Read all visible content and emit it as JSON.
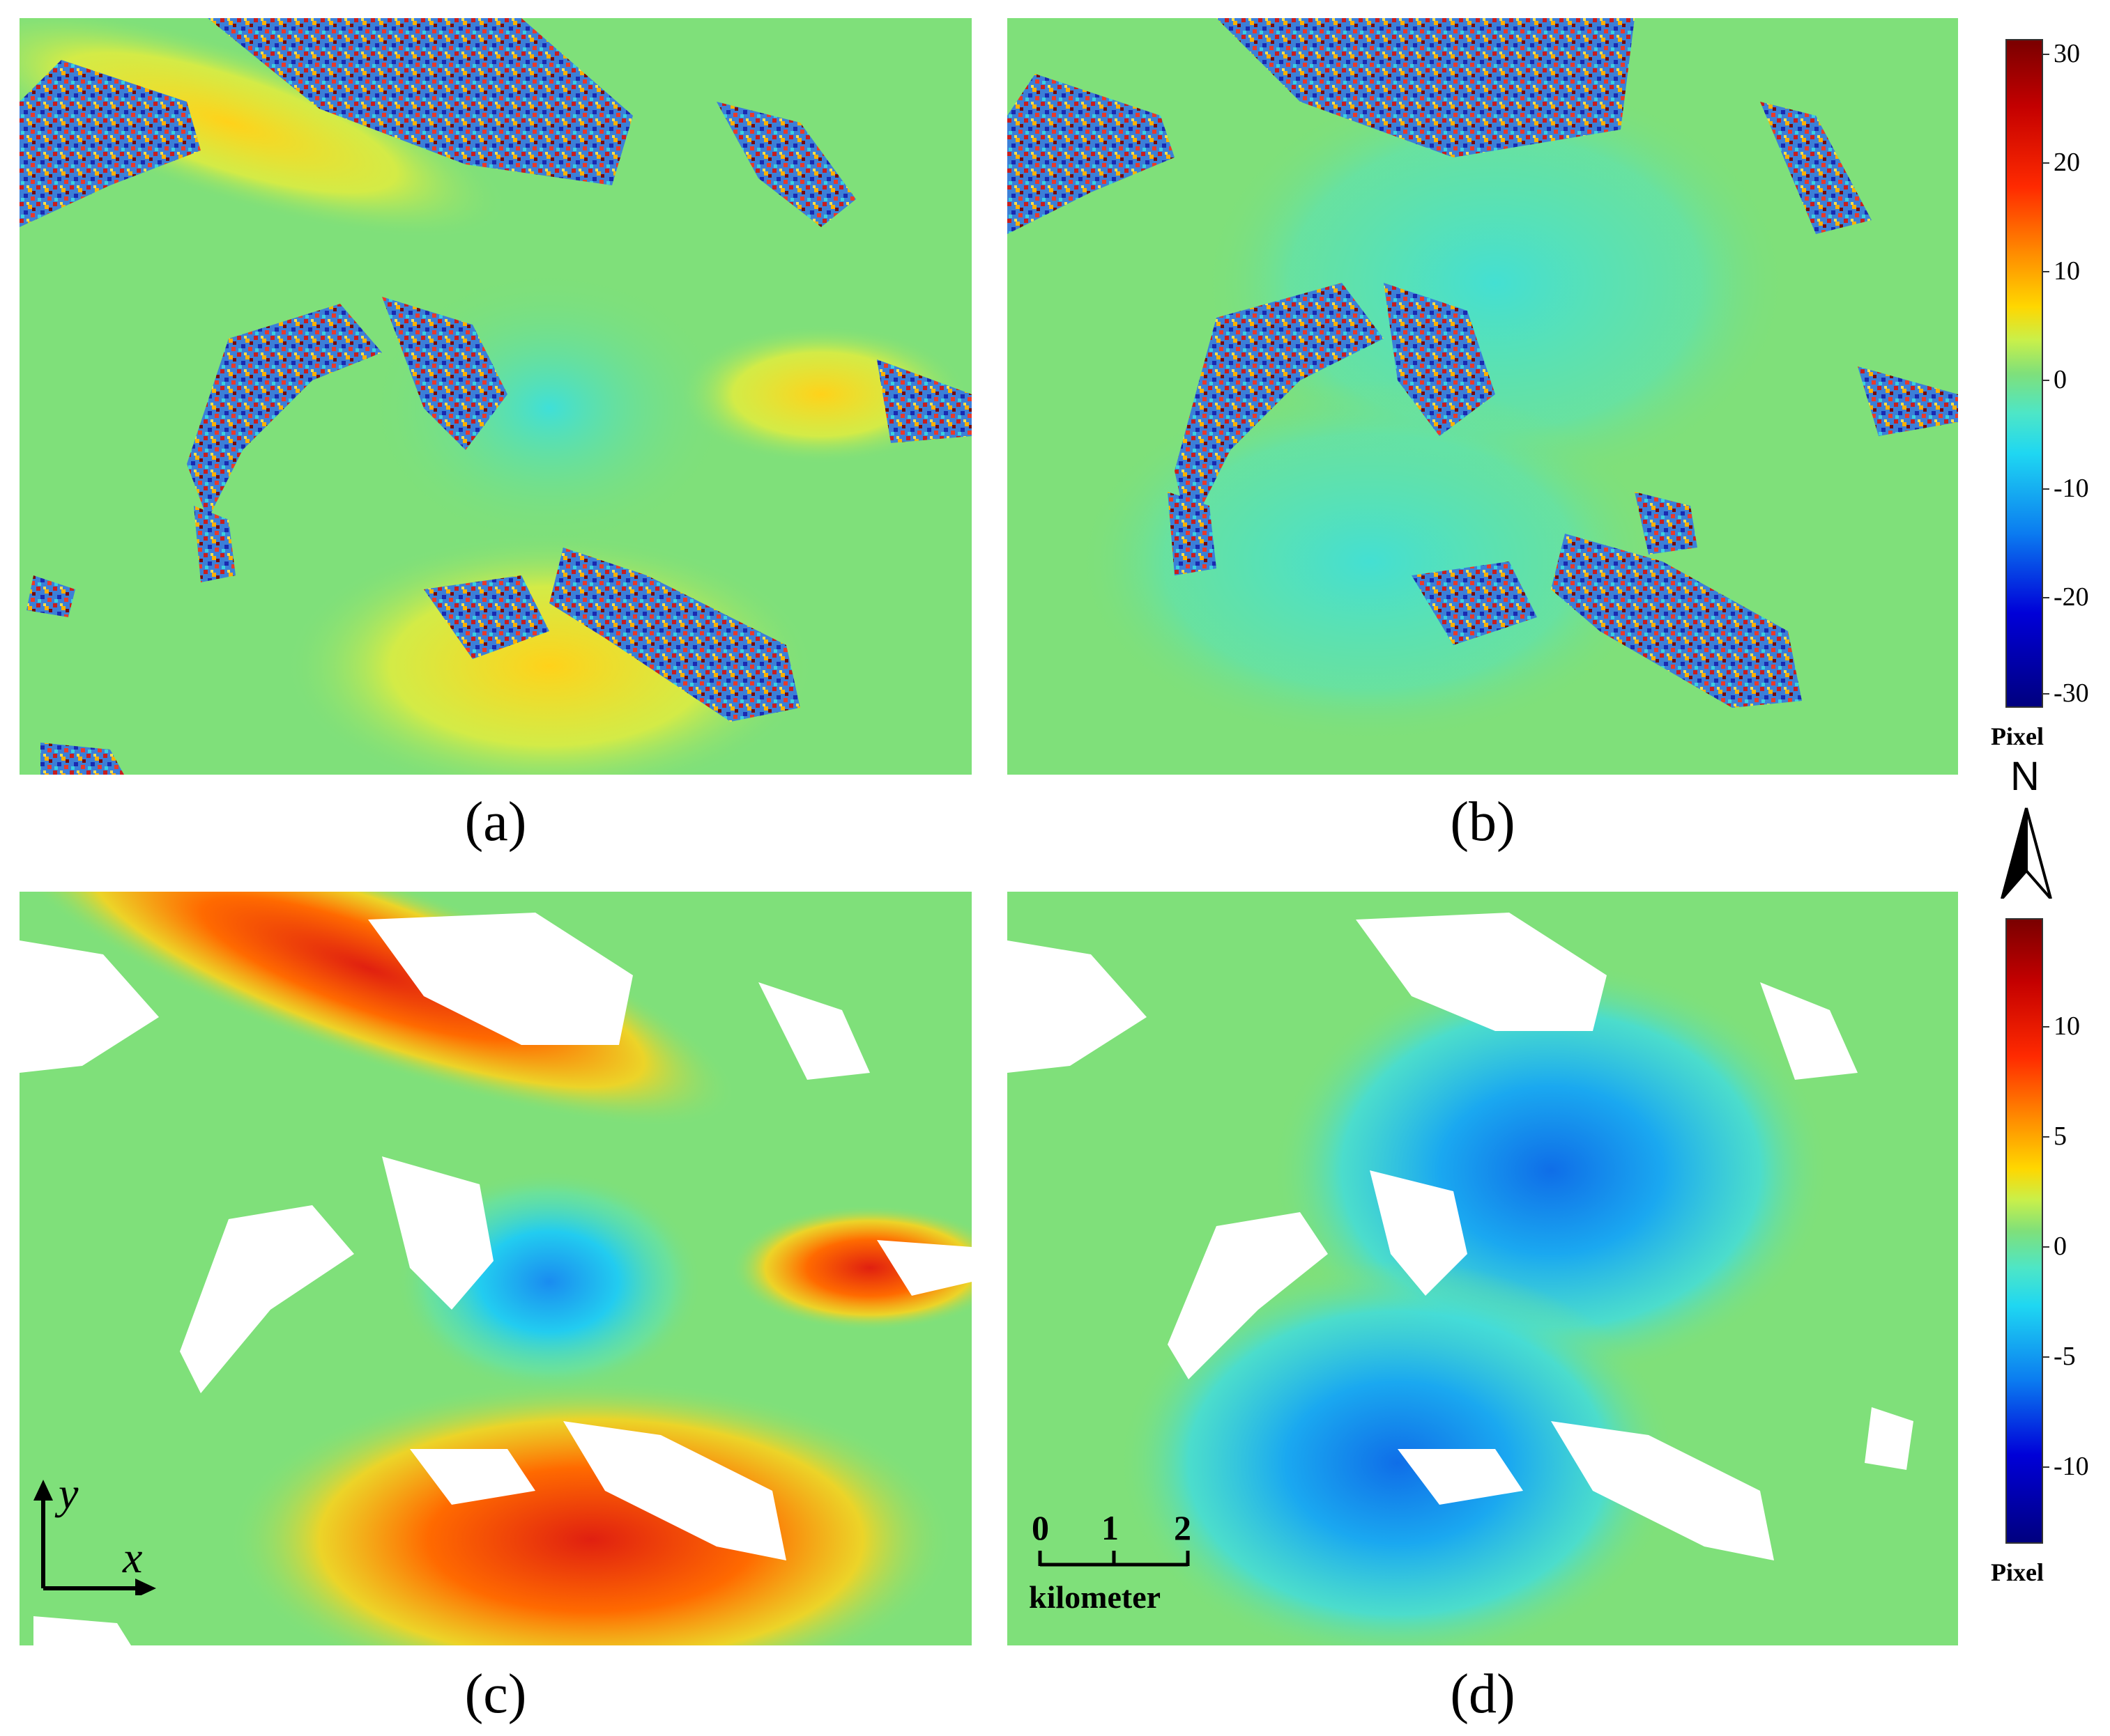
{
  "panels": [
    {
      "id": "a",
      "caption": "(a)"
    },
    {
      "id": "b",
      "caption": "(b)"
    },
    {
      "id": "c",
      "caption": "(c)"
    },
    {
      "id": "d",
      "caption": "(d)"
    }
  ],
  "colorbar_top": {
    "ticks": [
      "30",
      "20",
      "10",
      "0",
      "-10",
      "-20",
      "-30"
    ],
    "unit": "Pixel",
    "colormap": "jet"
  },
  "colorbar_bottom": {
    "ticks": [
      "10",
      "5",
      "0",
      "-5",
      "-10"
    ],
    "unit": "Pixel",
    "colormap": "jet"
  },
  "north_arrow": {
    "label": "N"
  },
  "axes_indicator": {
    "x_label": "x",
    "y_label": "y"
  },
  "scale_bar": {
    "ticks": [
      "0",
      "1",
      "2"
    ],
    "unit": "kilometer"
  },
  "colors": {
    "background_green": "#7fe07a",
    "masked": "#ffffff"
  }
}
